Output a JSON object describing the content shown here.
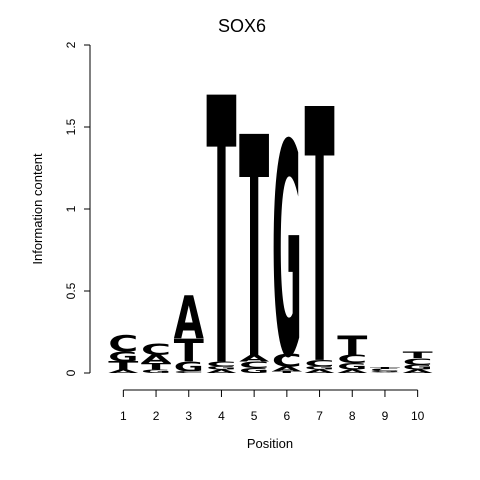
{
  "chart_data": {
    "type": "sequence-logo",
    "title": "SOX6",
    "xlabel": "Position",
    "ylabel": "Information content",
    "ylim": [
      0,
      2
    ],
    "yticks": [
      "0",
      "0.5",
      "1",
      "1.5",
      "2"
    ],
    "positions": [
      "1",
      "2",
      "3",
      "4",
      "5",
      "6",
      "7",
      "8",
      "9",
      "10"
    ],
    "colors": {
      "A": "#00cc00",
      "C": "#0000ff",
      "G": "#ffa500",
      "T": "#ff0000"
    },
    "stacks": [
      [
        {
          "letter": "A",
          "value": 0.02
        },
        {
          "letter": "T",
          "value": 0.05
        },
        {
          "letter": "G",
          "value": 0.06
        },
        {
          "letter": "C",
          "value": 0.1
        }
      ],
      [
        {
          "letter": "G",
          "value": 0.02
        },
        {
          "letter": "T",
          "value": 0.04
        },
        {
          "letter": "A",
          "value": 0.05
        },
        {
          "letter": "C",
          "value": 0.07
        }
      ],
      [
        {
          "letter": "C",
          "value": 0.01
        },
        {
          "letter": "G",
          "value": 0.06
        },
        {
          "letter": "T",
          "value": 0.14
        },
        {
          "letter": "A",
          "value": 0.26
        }
      ],
      [
        {
          "letter": "A",
          "value": 0.02
        },
        {
          "letter": "G",
          "value": 0.02
        },
        {
          "letter": "C",
          "value": 0.03
        },
        {
          "letter": "T",
          "value": 1.63
        }
      ],
      [
        {
          "letter": "G",
          "value": 0.03
        },
        {
          "letter": "C",
          "value": 0.04
        },
        {
          "letter": "A",
          "value": 0.04
        },
        {
          "letter": "T",
          "value": 1.35
        }
      ],
      [
        {
          "letter": "T",
          "value": 0.01
        },
        {
          "letter": "A",
          "value": 0.03
        },
        {
          "letter": "C",
          "value": 0.08
        },
        {
          "letter": "G",
          "value": 1.3
        }
      ],
      [
        {
          "letter": "A",
          "value": 0.02
        },
        {
          "letter": "G",
          "value": 0.02
        },
        {
          "letter": "C",
          "value": 0.04
        },
        {
          "letter": "T",
          "value": 1.55
        }
      ],
      [
        {
          "letter": "A",
          "value": 0.02
        },
        {
          "letter": "G",
          "value": 0.04
        },
        {
          "letter": "C",
          "value": 0.05
        },
        {
          "letter": "T",
          "value": 0.12
        }
      ],
      [
        {
          "letter": "A",
          "value": 0.005
        },
        {
          "letter": "G",
          "value": 0.01
        },
        {
          "letter": "C",
          "value": 0.01
        },
        {
          "letter": "T",
          "value": 0.01
        }
      ],
      [
        {
          "letter": "A",
          "value": 0.02
        },
        {
          "letter": "G",
          "value": 0.03
        },
        {
          "letter": "C",
          "value": 0.04
        },
        {
          "letter": "T",
          "value": 0.04
        }
      ]
    ]
  }
}
